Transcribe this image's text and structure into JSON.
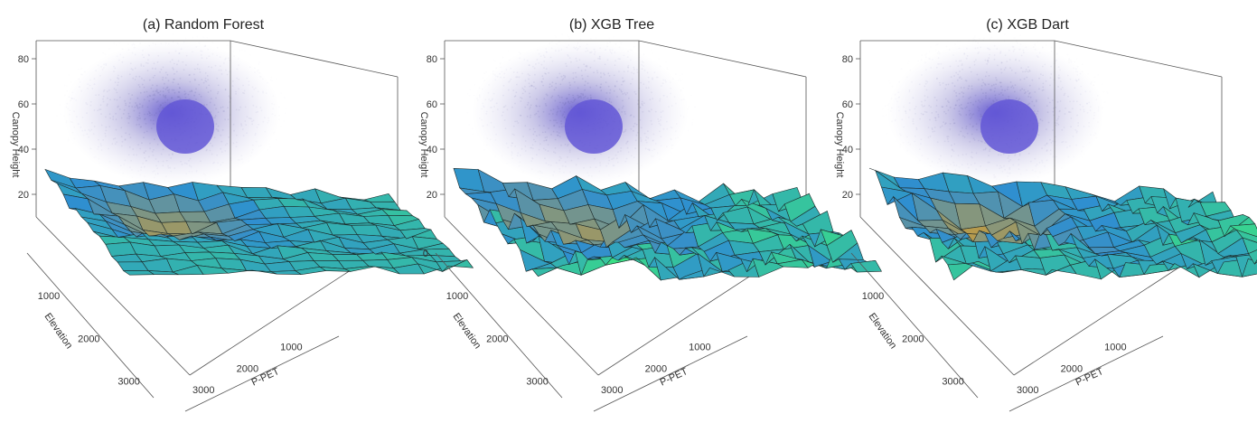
{
  "figure": {
    "panels": [
      {
        "title": "(a)  Random Forest"
      },
      {
        "title": "(b)  XGB Tree"
      },
      {
        "title": "(c)  XGB Dart"
      }
    ]
  },
  "chart_data": [
    {
      "type": "surface3d",
      "title": "(a)  Random Forest",
      "zlabel": "Canopy Height",
      "ylabel": "Elevation",
      "xlabel": "P-PET",
      "z_ticks": [
        20,
        40,
        60,
        80
      ],
      "elevation_ticks": [
        1000,
        2000,
        3000
      ],
      "ppet_ticks": [
        1000,
        2000,
        3000
      ],
      "zlim": [
        10,
        88
      ],
      "background_point_cloud": true,
      "colors": {
        "high": "#3dfb6a",
        "mid": "#2f8fd0",
        "low": "#b99a4a",
        "cloud": "#6a5fd0"
      },
      "surface_seed": 1,
      "surface_roughness": 0.35
    },
    {
      "type": "surface3d",
      "title": "(b)  XGB Tree",
      "zlabel": "Canopy Height",
      "ylabel": "Elevation",
      "xlabel": "P-PET",
      "z_ticks": [
        20,
        40,
        60,
        80
      ],
      "elevation_ticks": [
        0,
        1000,
        2000,
        3000
      ],
      "ppet_ticks": [
        1000,
        2000,
        3000
      ],
      "zlim": [
        10,
        88
      ],
      "background_point_cloud": true,
      "colors": {
        "high": "#3dfb6a",
        "mid": "#2f8fd0",
        "low": "#b99a4a",
        "cloud": "#6a5fd0"
      },
      "surface_seed": 7,
      "surface_roughness": 0.9
    },
    {
      "type": "surface3d",
      "title": "(c)  XGB Dart",
      "zlabel": "Canopy Height",
      "ylabel": "Elevation",
      "xlabel": "P-PET",
      "z_ticks": [
        20,
        40,
        60,
        80
      ],
      "elevation_ticks": [
        1000,
        2000,
        3000
      ],
      "ppet_ticks": [
        1000,
        2000,
        3000
      ],
      "zlim": [
        10,
        88
      ],
      "background_point_cloud": true,
      "colors": {
        "high": "#3dfb6a",
        "mid": "#2f8fd0",
        "low": "#b99a4a",
        "cloud": "#6a5fd0"
      },
      "surface_seed": 13,
      "surface_roughness": 0.8
    }
  ]
}
